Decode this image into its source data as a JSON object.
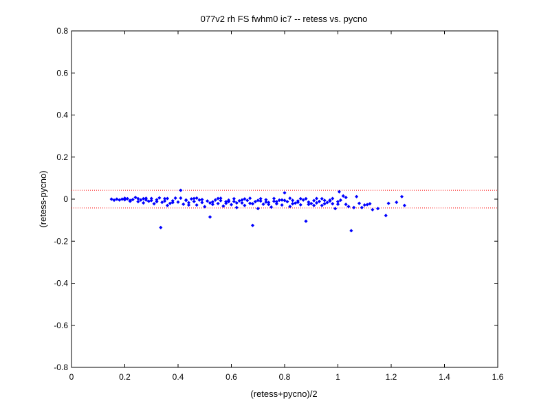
{
  "chart_data": {
    "type": "scatter",
    "title": "077v2 rh FS fwhm0 ic7 -- retess vs. pycno",
    "xlabel": "(retess+pycno)/2",
    "ylabel": "(retess-pycno)",
    "xlim": [
      0,
      1.6
    ],
    "ylim": [
      -0.8,
      0.8
    ],
    "xticks": [
      0,
      0.2,
      0.4,
      0.6,
      0.8,
      1,
      1.2,
      1.4,
      1.6
    ],
    "xtick_labels": [
      "0",
      "0.2",
      "0.4",
      "0.6",
      "0.8",
      "1",
      "1.2",
      "1.4",
      "1.6"
    ],
    "yticks": [
      -0.8,
      -0.6,
      -0.4,
      -0.2,
      0,
      0.2,
      0.4,
      0.6,
      0.8
    ],
    "ytick_labels": [
      "-0.8",
      "-0.6",
      "-0.4",
      "-0.2",
      "0",
      "0.2",
      "0.4",
      "0.6",
      "0.8"
    ],
    "grid": false,
    "marker_color": "#0000ff",
    "reference_line_color": "#ff0000",
    "reference_lines": [
      0.042,
      -0.042
    ],
    "series": [
      {
        "marker": "diamond",
        "points": [
          [
            0.15,
            0.0
          ],
          [
            0.16,
            -0.005
          ],
          [
            0.17,
            0.0
          ],
          [
            0.18,
            -0.004
          ],
          [
            0.19,
            0.0
          ],
          [
            0.2,
            -0.003
          ],
          [
            0.21,
            0.002
          ],
          [
            0.22,
            -0.006
          ],
          [
            0.23,
            -0.002
          ],
          [
            0.24,
            0.008
          ],
          [
            0.25,
            -0.012
          ],
          [
            0.26,
            -0.004
          ],
          [
            0.27,
            -0.018
          ],
          [
            0.28,
            0.004
          ],
          [
            0.29,
            -0.01
          ],
          [
            0.3,
            -0.006
          ],
          [
            0.31,
            -0.022
          ],
          [
            0.32,
            -0.003
          ],
          [
            0.33,
            0.006
          ],
          [
            0.335,
            -0.135
          ],
          [
            0.34,
            -0.015
          ],
          [
            0.35,
            -0.009
          ],
          [
            0.36,
            0.003
          ],
          [
            0.37,
            -0.02
          ],
          [
            0.38,
            -0.008
          ],
          [
            0.39,
            0.005
          ],
          [
            0.4,
            -0.014
          ],
          [
            0.41,
            0.042
          ],
          [
            0.42,
            -0.024
          ],
          [
            0.43,
            -0.006
          ],
          [
            0.44,
            -0.017
          ],
          [
            0.45,
            0.001
          ],
          [
            0.46,
            -0.011
          ],
          [
            0.47,
            -0.028
          ],
          [
            0.48,
            -0.004
          ],
          [
            0.49,
            -0.016
          ],
          [
            0.5,
            -0.036
          ],
          [
            0.51,
            -0.009
          ],
          [
            0.52,
            -0.085
          ],
          [
            0.53,
            -0.013
          ],
          [
            0.54,
            -0.004
          ],
          [
            0.55,
            -0.021
          ],
          [
            0.56,
            -0.007
          ],
          [
            0.57,
            -0.033
          ],
          [
            0.58,
            -0.012
          ],
          [
            0.59,
            -0.005
          ],
          [
            0.6,
            -0.026
          ],
          [
            0.61,
            -0.011
          ],
          [
            0.62,
            -0.04
          ],
          [
            0.63,
            -0.008
          ],
          [
            0.64,
            -0.018
          ],
          [
            0.65,
            -0.03
          ],
          [
            0.66,
            -0.006
          ],
          [
            0.67,
            -0.02
          ],
          [
            0.68,
            -0.125
          ],
          [
            0.69,
            -0.012
          ],
          [
            0.7,
            -0.045
          ],
          [
            0.71,
            -0.009
          ],
          [
            0.72,
            -0.024
          ],
          [
            0.73,
            -0.003
          ],
          [
            0.74,
            -0.016
          ],
          [
            0.75,
            -0.038
          ],
          [
            0.76,
            -0.01
          ],
          [
            0.77,
            -0.022
          ],
          [
            0.78,
            -0.005
          ],
          [
            0.79,
            -0.028
          ],
          [
            0.8,
            0.03
          ],
          [
            0.81,
            -0.012
          ],
          [
            0.82,
            -0.035
          ],
          [
            0.83,
            -0.006
          ],
          [
            0.84,
            -0.019
          ],
          [
            0.85,
            -0.009
          ],
          [
            0.86,
            -0.027
          ],
          [
            0.87,
            -0.004
          ],
          [
            0.88,
            -0.105
          ],
          [
            0.89,
            -0.014
          ],
          [
            0.9,
            -0.021
          ],
          [
            0.91,
            -0.007
          ],
          [
            0.92,
            -0.018
          ],
          [
            0.93,
            -0.011
          ],
          [
            0.94,
            -0.03
          ],
          [
            0.95,
            -0.006
          ],
          [
            0.96,
            -0.016
          ],
          [
            0.97,
            -0.009
          ],
          [
            0.98,
            -0.022
          ],
          [
            0.99,
            -0.045
          ],
          [
            1.0,
            -0.012
          ],
          [
            1.005,
            0.035
          ],
          [
            1.01,
            -0.005
          ],
          [
            1.02,
            0.015
          ],
          [
            1.03,
            -0.025
          ],
          [
            1.04,
            -0.035
          ],
          [
            1.05,
            -0.15
          ],
          [
            1.06,
            -0.04
          ],
          [
            1.07,
            0.012
          ],
          [
            1.08,
            -0.02
          ],
          [
            1.09,
            -0.04
          ],
          [
            1.1,
            -0.028
          ],
          [
            1.11,
            -0.026
          ],
          [
            1.12,
            -0.022
          ],
          [
            1.13,
            -0.05
          ],
          [
            1.15,
            -0.045
          ],
          [
            1.18,
            -0.078
          ],
          [
            1.19,
            -0.02
          ],
          [
            1.22,
            -0.015
          ],
          [
            1.24,
            0.012
          ],
          [
            1.25,
            -0.03
          ],
          [
            0.2,
            0.004
          ],
          [
            0.22,
            -0.01
          ],
          [
            0.25,
            0.002
          ],
          [
            0.28,
            -0.004
          ],
          [
            0.3,
            0.003
          ],
          [
            0.32,
            -0.012
          ],
          [
            0.35,
            0.002
          ],
          [
            0.38,
            -0.016
          ],
          [
            0.41,
            0.005
          ],
          [
            0.43,
            -0.004
          ],
          [
            0.46,
            0.003
          ],
          [
            0.49,
            -0.002
          ],
          [
            0.52,
            -0.018
          ],
          [
            0.55,
            0.003
          ],
          [
            0.58,
            -0.02
          ],
          [
            0.61,
            0.002
          ],
          [
            0.64,
            -0.004
          ],
          [
            0.67,
            0.004
          ],
          [
            0.7,
            -0.006
          ],
          [
            0.73,
            -0.014
          ],
          [
            0.76,
            0.003
          ],
          [
            0.79,
            -0.004
          ],
          [
            0.82,
            0.004
          ],
          [
            0.85,
            -0.015
          ],
          [
            0.88,
            0.002
          ],
          [
            0.91,
            -0.03
          ],
          [
            0.94,
            0.002
          ],
          [
            0.97,
            -0.005
          ],
          [
            1.0,
            -0.024
          ],
          [
            1.03,
            0.008
          ],
          [
            0.44,
            -0.028
          ],
          [
            0.47,
            0.005
          ],
          [
            0.53,
            -0.025
          ],
          [
            0.56,
            0.004
          ],
          [
            0.59,
            -0.012
          ],
          [
            0.62,
            -0.018
          ],
          [
            0.65,
            0.001
          ],
          [
            0.68,
            -0.022
          ],
          [
            0.71,
            0.002
          ],
          [
            0.74,
            -0.025
          ],
          [
            0.77,
            -0.012
          ],
          [
            0.8,
            -0.006
          ],
          [
            0.83,
            -0.022
          ],
          [
            0.86,
            0.002
          ],
          [
            0.89,
            -0.025
          ],
          [
            0.92,
            0.003
          ],
          [
            0.95,
            -0.022
          ],
          [
            0.98,
            0.003
          ],
          [
            0.27,
            0.002
          ],
          [
            0.36,
            -0.03
          ]
        ]
      }
    ]
  }
}
